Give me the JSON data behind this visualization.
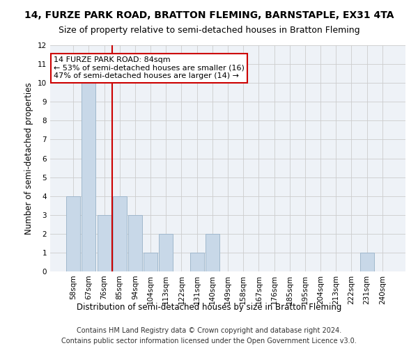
{
  "title": "14, FURZE PARK ROAD, BRATTON FLEMING, BARNSTAPLE, EX31 4TA",
  "subtitle": "Size of property relative to semi-detached houses in Bratton Fleming",
  "xlabel": "Distribution of semi-detached houses by size in Bratton Fleming",
  "ylabel": "Number of semi-detached properties",
  "footer_line1": "Contains HM Land Registry data © Crown copyright and database right 2024.",
  "footer_line2": "Contains public sector information licensed under the Open Government Licence v3.0.",
  "annotation_title": "14 FURZE PARK ROAD: 84sqm",
  "annotation_line1": "← 53% of semi-detached houses are smaller (16)",
  "annotation_line2": "47% of semi-detached houses are larger (14) →",
  "categories": [
    "58sqm",
    "67sqm",
    "76sqm",
    "85sqm",
    "94sqm",
    "104sqm",
    "113sqm",
    "122sqm",
    "131sqm",
    "140sqm",
    "149sqm",
    "158sqm",
    "167sqm",
    "176sqm",
    "185sqm",
    "195sqm",
    "204sqm",
    "213sqm",
    "222sqm",
    "231sqm",
    "240sqm"
  ],
  "values": [
    4,
    10,
    3,
    4,
    3,
    1,
    2,
    0,
    1,
    2,
    0,
    0,
    0,
    0,
    0,
    0,
    0,
    0,
    0,
    1,
    0
  ],
  "bar_color": "#c8d8e8",
  "bar_edgecolor": "#a0b8cc",
  "red_line_x": 2.5,
  "ylim": [
    0,
    12
  ],
  "yticks": [
    0,
    1,
    2,
    3,
    4,
    5,
    6,
    7,
    8,
    9,
    10,
    11,
    12
  ],
  "grid_color": "#cccccc",
  "background_color": "#eef2f7",
  "annotation_box_color": "#ffffff",
  "annotation_box_edgecolor": "#cc0000",
  "red_line_color": "#cc0000",
  "title_fontsize": 10,
  "subtitle_fontsize": 9,
  "xlabel_fontsize": 8.5,
  "ylabel_fontsize": 8.5,
  "tick_fontsize": 7.5,
  "annotation_fontsize": 8,
  "footer_fontsize": 7
}
